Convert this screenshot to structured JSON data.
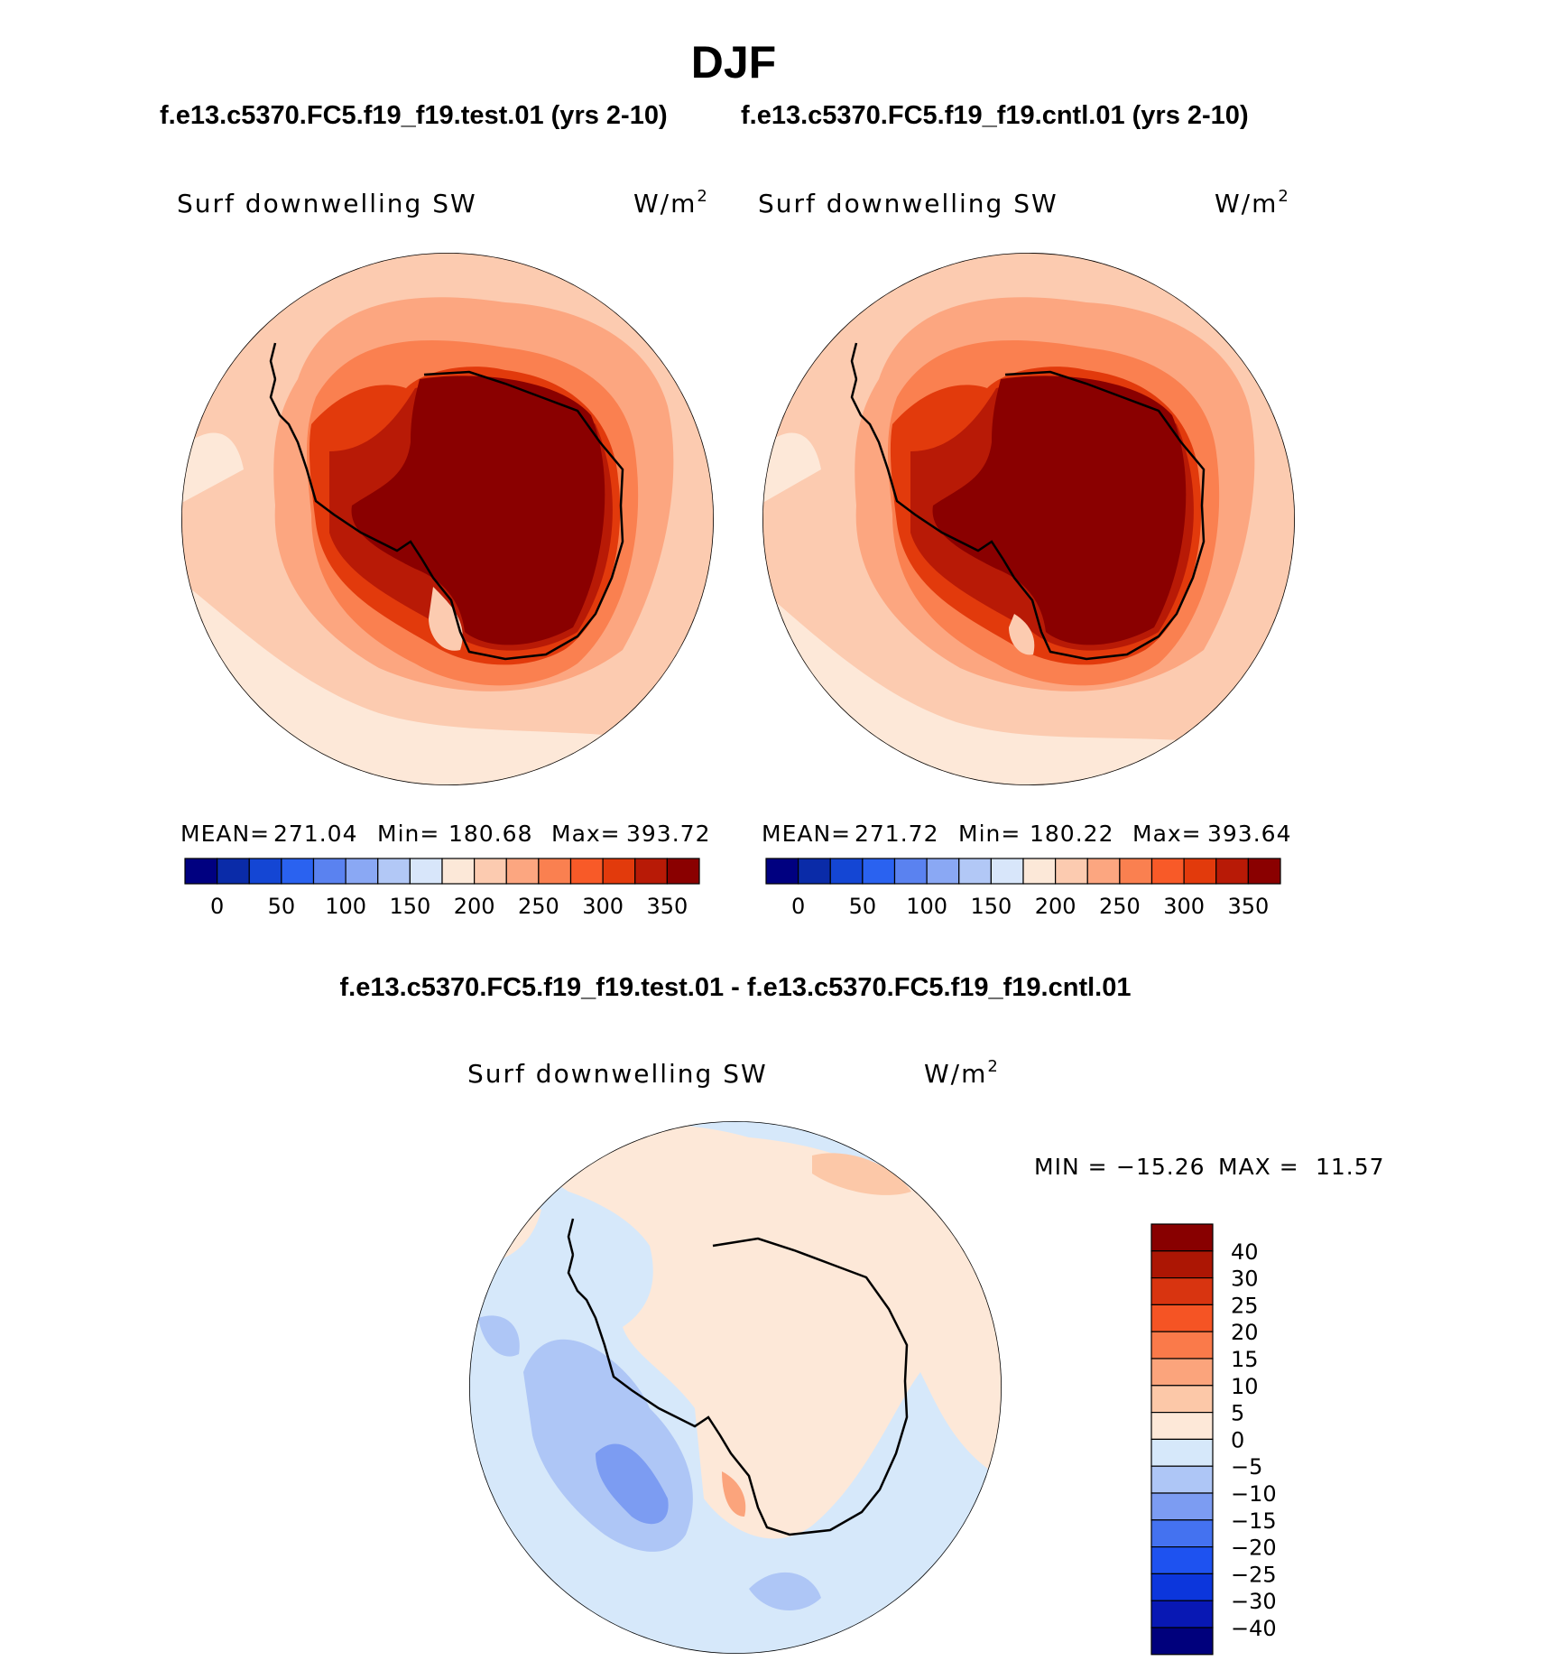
{
  "season": "DJF",
  "header": {
    "test_case": "f.e13.c5370.FC5.f19_f19.test.01 (yrs 2-10)",
    "cntl_case": "f.e13.c5370.FC5.f19_f19.cntl.01 (yrs 2-10)"
  },
  "diff_title": "f.e13.c5370.FC5.f19_f19.test.01 - f.e13.c5370.FC5.f19_f19.cntl.01",
  "colors": {
    "abs_levels": [
      "#000080",
      "#0a2ba8",
      "#1446d4",
      "#2a62f0",
      "#5a82f0",
      "#8aa8f4",
      "#b2c8f6",
      "#d8e6fa",
      "#fce8d8",
      "#fccbb0",
      "#fca680",
      "#fa8050",
      "#f85a28",
      "#e23a0c",
      "#b81a06",
      "#8a0000"
    ],
    "diff_levels": [
      "#00007c",
      "#0818b4",
      "#0c36dc",
      "#1e52f0",
      "#4472f0",
      "#7c9cf2",
      "#aec6f6",
      "#d6e8fa",
      "#fde8d8",
      "#fcc8a8",
      "#fba47c",
      "#fa7a4a",
      "#f55424",
      "#d83410",
      "#ac1604",
      "#880000"
    ]
  },
  "panels": [
    {
      "id": "test",
      "variable": "Surf downwelling SW",
      "units_base": "W/m",
      "units_exp": "2",
      "stats": {
        "mean_label": "MEAN=",
        "mean": "271.04",
        "min_label": "Min=",
        "min": "180.68",
        "max_label": "Max=",
        "max": "393.72"
      },
      "colorbar_ticks": [
        "0",
        "50",
        "100",
        "150",
        "200",
        "250",
        "300",
        "350"
      ]
    },
    {
      "id": "cntl",
      "variable": "Surf downwelling SW",
      "units_base": "W/m",
      "units_exp": "2",
      "stats": {
        "mean_label": "MEAN=",
        "mean": "271.72",
        "min_label": "Min=",
        "min": "180.22",
        "max_label": "Max=",
        "max": "393.64"
      },
      "colorbar_ticks": [
        "0",
        "50",
        "100",
        "150",
        "200",
        "250",
        "300",
        "350"
      ]
    }
  ],
  "diff_panel": {
    "variable": "Surf downwelling SW",
    "units_base": "W/m",
    "units_exp": "2",
    "stats": {
      "min_label": "MIN =",
      "min": "−15.26",
      "max_label": "MAX =",
      "max": "11.57"
    },
    "colorbar_ticks": [
      "40",
      "30",
      "25",
      "20",
      "15",
      "10",
      "5",
      "0",
      "−5",
      "−10",
      "−15",
      "−20",
      "−25",
      "−30",
      "−40"
    ]
  }
}
